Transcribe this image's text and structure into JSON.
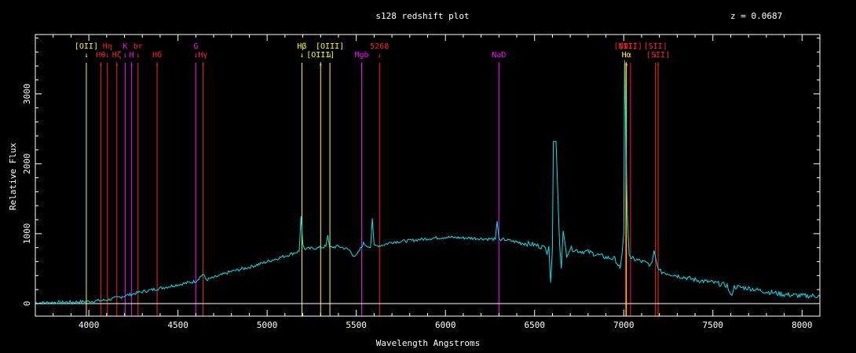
{
  "colors": {
    "background": "#000000",
    "axes": "#ffffff",
    "spectrum": "#00e5ee",
    "yellow": "#ffff00",
    "red": "#ff2020",
    "magenta": "#ff00ff",
    "zero_line": "#ffffff"
  },
  "chart_data": {
    "type": "line",
    "title": "s128 redshift plot",
    "annotation": "z = 0.0687",
    "xlabel": "Wavelength  Angstroms",
    "ylabel": "Relative Flux",
    "xlim": [
      3700,
      8100
    ],
    "ylim": [
      -180,
      3850
    ],
    "x_ticks": [
      4000,
      4500,
      5000,
      5500,
      6000,
      6500,
      7000,
      7500,
      8000
    ],
    "y_ticks": [
      0,
      1000,
      2000,
      3000
    ],
    "grid": false,
    "series": [
      {
        "x": [
          3700,
          3800,
          3900,
          4000,
          4100,
          4150,
          4200,
          4250,
          4300,
          4400,
          4500,
          4600,
          4640,
          4660,
          4700,
          4800,
          4900,
          5000,
          5100,
          5180,
          5190,
          5200,
          5210,
          5300,
          5330,
          5340,
          5350,
          5400,
          5460,
          5480,
          5500,
          5540,
          5580,
          5590,
          5600,
          5650,
          5700,
          5800,
          5900,
          6000,
          6100,
          6200,
          6280,
          6290,
          6300,
          6310,
          6320,
          6400,
          6500,
          6560,
          6570,
          6580,
          6590,
          6600,
          6605,
          6610,
          6620,
          6640,
          6650,
          6660,
          6680,
          6700,
          6750,
          6800,
          6850,
          6900,
          6950,
          6980,
          6990,
          7000,
          7005,
          7010,
          7015,
          7020,
          7030,
          7040,
          7050,
          7080,
          7100,
          7150,
          7160,
          7170,
          7180,
          7190,
          7200,
          7220,
          7300,
          7400,
          7500,
          7580,
          7600,
          7620,
          7700,
          7800,
          7900,
          8000,
          8100
        ],
        "y": [
          10,
          15,
          20,
          30,
          50,
          80,
          110,
          140,
          170,
          220,
          270,
          320,
          420,
          340,
          370,
          460,
          520,
          600,
          680,
          750,
          1250,
          850,
          780,
          800,
          820,
          980,
          800,
          820,
          770,
          700,
          680,
          860,
          800,
          1220,
          820,
          840,
          880,
          900,
          930,
          950,
          940,
          930,
          920,
          1180,
          930,
          900,
          920,
          880,
          840,
          800,
          700,
          820,
          300,
          780,
          2320,
          2320,
          2320,
          860,
          500,
          1040,
          700,
          790,
          750,
          740,
          700,
          660,
          640,
          500,
          700,
          1000,
          3480,
          2700,
          1900,
          1300,
          700,
          650,
          640,
          620,
          600,
          560,
          600,
          760,
          640,
          520,
          460,
          450,
          400,
          340,
          300,
          260,
          100,
          240,
          220,
          170,
          130,
          110,
          110
        ]
      }
    ],
    "lines": [
      {
        "wl": 3986,
        "color": "yellow",
        "label": "[OII]",
        "row": 1
      },
      {
        "wl": 4067,
        "color": "red",
        "label": "Hθ",
        "row": 2
      },
      {
        "wl": 4104,
        "color": "red",
        "label": "Hη",
        "row": 1
      },
      {
        "wl": 4157,
        "color": "red",
        "label": "Hζ",
        "row": 2
      },
      {
        "wl": 4204,
        "color": "magenta",
        "label": "K",
        "row": 1
      },
      {
        "wl": 4240,
        "color": "magenta",
        "label": "H",
        "row": 2
      },
      {
        "wl": 4276,
        "color": "red",
        "label": "br",
        "row": 1
      },
      {
        "wl": 4383,
        "color": "red",
        "label": "Hδ",
        "row": 2
      },
      {
        "wl": 4600,
        "color": "magenta",
        "label": "G",
        "row": 1
      },
      {
        "wl": 4640,
        "color": "red",
        "label": "Hγ",
        "row": 2
      },
      {
        "wl": 5195,
        "color": "yellow",
        "label": "Hβ",
        "row": 1
      },
      {
        "wl": 5300,
        "color": "yellow",
        "label": "[OIII]",
        "row": 2
      },
      {
        "wl": 5352,
        "color": "yellow",
        "label": "[OIII]",
        "row": 1
      },
      {
        "wl": 5530,
        "color": "magenta",
        "label": "Mgb",
        "row": 2
      },
      {
        "wl": 5630,
        "color": "red",
        "label": "5268",
        "row": 1
      },
      {
        "wl": 6300,
        "color": "magenta",
        "label": "NaD",
        "row": 2
      },
      {
        "wl": 7010,
        "color": "red",
        "label": "[NII]",
        "row": 1
      },
      {
        "wl": 7015,
        "color": "yellow",
        "label": "Hα",
        "row": 2
      },
      {
        "wl": 7038,
        "color": "red",
        "label": "[NII]",
        "row": 1
      },
      {
        "wl": 7178,
        "color": "red",
        "label": "[SII]",
        "row": 1
      },
      {
        "wl": 7193,
        "color": "red",
        "label": "[SII]",
        "row": 2
      }
    ]
  }
}
